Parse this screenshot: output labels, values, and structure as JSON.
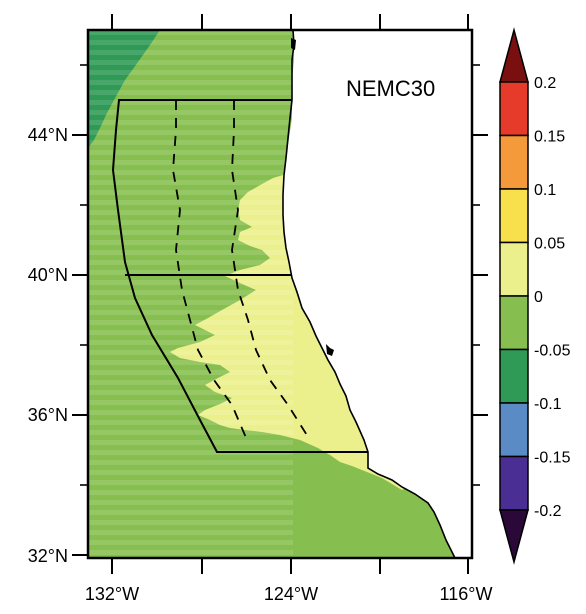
{
  "map": {
    "title": "NEMC30",
    "lat_labels": [
      "44°N",
      "40°N",
      "36°N",
      "32°N"
    ],
    "lon_labels": [
      "132°W",
      "124°W",
      "116°W"
    ]
  },
  "colorbar": {
    "labels": [
      "0.2",
      "0.15",
      "0.1",
      "0.05",
      "0",
      "-0.05",
      "-0.1",
      "-0.15",
      "-0.2"
    ],
    "colors": {
      "top_extend": "#7a0f0f",
      "0.15_0.2": "#e63a2a",
      "0.1_0.15": "#f59a3a",
      "0.05_0.1": "#f7e04c",
      "0_0.05": "#ecf08c",
      "neg0.05_0": "#86bf4f",
      "neg0.1_neg0.05": "#2f9a55",
      "neg0.15_neg0.1": "#5b8bc4",
      "neg0.2_neg0.15": "#4a2e94",
      "bottom_extend": "#2a0838"
    }
  }
}
